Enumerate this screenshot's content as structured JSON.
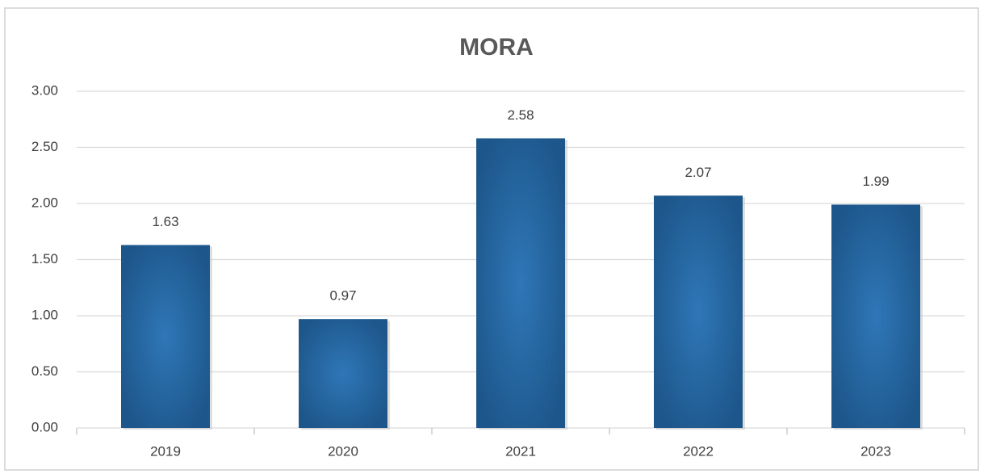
{
  "chart_data": {
    "type": "bar",
    "title": "MORA",
    "categories": [
      "2019",
      "2020",
      "2021",
      "2022",
      "2023"
    ],
    "values": [
      1.63,
      0.97,
      2.58,
      2.07,
      1.99
    ],
    "color": "#1f5a8f",
    "ylim": [
      0,
      3
    ],
    "yticks": [
      {
        "value": 0,
        "label": "0.00"
      },
      {
        "value": 0.5,
        "label": "0.50"
      },
      {
        "value": 1,
        "label": "1.00"
      },
      {
        "value": 1.5,
        "label": "1.50"
      },
      {
        "value": 2,
        "label": "2.00"
      },
      {
        "value": 2.5,
        "label": "2.50"
      },
      {
        "value": 3,
        "label": "3.00"
      }
    ],
    "grid": true
  }
}
